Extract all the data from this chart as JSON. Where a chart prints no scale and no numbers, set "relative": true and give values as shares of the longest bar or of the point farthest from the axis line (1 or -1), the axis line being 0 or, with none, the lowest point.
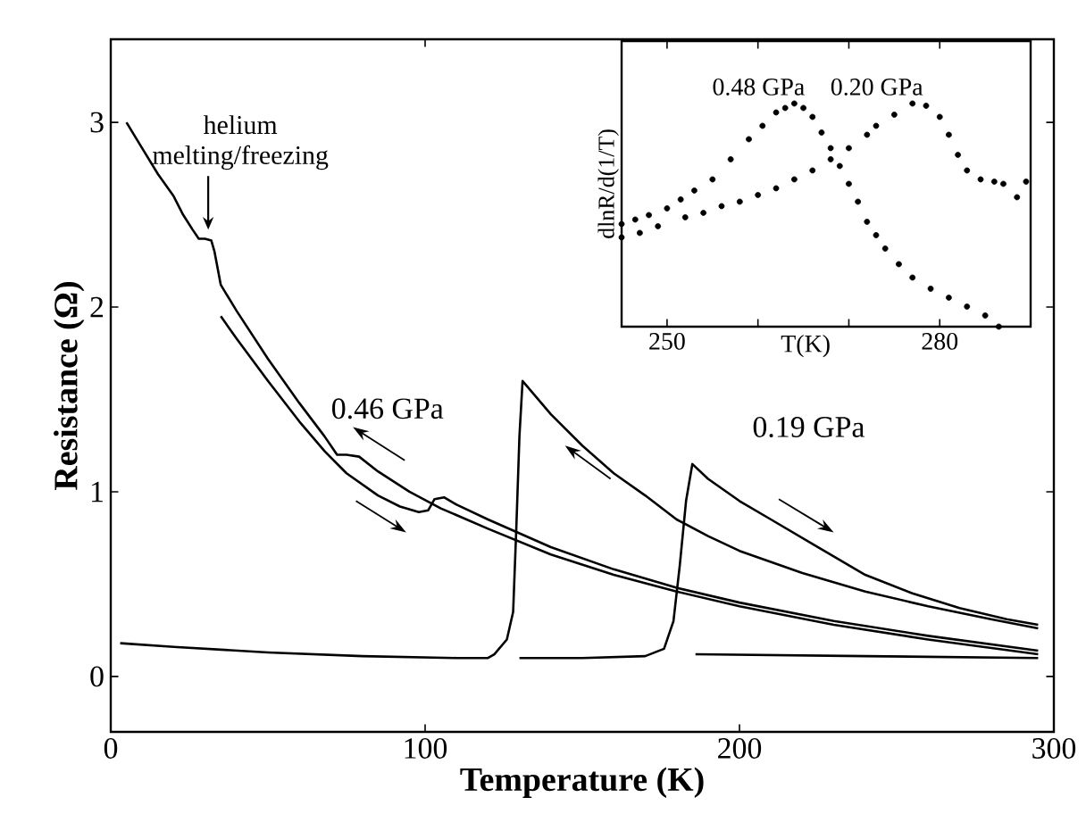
{
  "chart_data": [
    {
      "type": "line",
      "xlabel": "Temperature (K)",
      "ylabel": "Resistance (Ω)",
      "xlim": [
        0,
        300
      ],
      "ylim": [
        -0.3,
        3.45
      ],
      "xticks": [
        0,
        100,
        200,
        300
      ],
      "yticks": [
        0,
        1,
        2,
        3
      ],
      "series": [
        {
          "color": "#000000",
          "x": [
            5,
            10,
            15,
            20,
            23,
            26,
            28,
            30,
            32,
            33,
            35,
            40,
            50,
            60,
            68,
            72,
            75,
            79,
            85,
            95,
            105,
            120,
            140,
            160,
            180,
            200,
            230,
            260,
            295
          ],
          "values": [
            3.0,
            2.86,
            2.72,
            2.6,
            2.5,
            2.42,
            2.37,
            2.37,
            2.36,
            2.3,
            2.12,
            1.98,
            1.72,
            1.48,
            1.3,
            1.2,
            1.2,
            1.19,
            1.11,
            1.0,
            0.91,
            0.8,
            0.66,
            0.55,
            0.46,
            0.38,
            0.28,
            0.2,
            0.12
          ]
        },
        {
          "color": "#000000",
          "x": [
            35,
            40,
            50,
            60,
            68,
            75,
            85,
            92,
            98,
            101,
            103,
            106,
            110,
            120,
            140,
            160,
            180,
            200,
            230,
            260,
            295
          ],
          "values": [
            1.95,
            1.83,
            1.6,
            1.38,
            1.22,
            1.1,
            0.98,
            0.92,
            0.89,
            0.9,
            0.96,
            0.97,
            0.93,
            0.85,
            0.7,
            0.58,
            0.48,
            0.4,
            0.3,
            0.22,
            0.14
          ]
        },
        {
          "color": "#000000",
          "x": [
            3,
            20,
            50,
            80,
            110,
            120,
            122,
            126,
            128,
            129,
            130,
            131,
            140,
            150,
            160,
            170,
            180,
            190,
            200,
            220,
            240,
            260,
            280,
            295
          ],
          "values": [
            0.18,
            0.16,
            0.13,
            0.11,
            0.1,
            0.1,
            0.12,
            0.2,
            0.35,
            0.8,
            1.3,
            1.6,
            1.42,
            1.25,
            1.1,
            0.98,
            0.85,
            0.76,
            0.68,
            0.56,
            0.46,
            0.38,
            0.31,
            0.26
          ]
        },
        {
          "color": "#000000",
          "x": [
            130,
            150,
            170,
            176,
            179,
            181,
            183,
            185,
            190,
            200,
            210,
            225,
            240,
            255,
            270,
            285,
            295
          ],
          "values": [
            0.1,
            0.1,
            0.11,
            0.15,
            0.3,
            0.6,
            0.95,
            1.15,
            1.07,
            0.95,
            0.85,
            0.7,
            0.55,
            0.45,
            0.37,
            0.31,
            0.28
          ]
        },
        {
          "color": "#000000",
          "x": [
            186,
            240,
            295
          ],
          "values": [
            0.12,
            0.11,
            0.1
          ]
        }
      ],
      "annotations": [
        {
          "text": "helium melting/freezing",
          "x": 31,
          "y": 2.4
        },
        "0.46 GPa",
        "0.19 GPa"
      ]
    },
    {
      "type": "scatter",
      "xlabel": "T(K)",
      "ylabel": "dlnR/d(1/T)",
      "relative": true,
      "marker": "circle",
      "xlim": [
        245,
        290
      ],
      "xticks": [
        250,
        {
          "value": 260,
          "label": null
        },
        {
          "value": 270,
          "label": null
        },
        280
      ],
      "series": [
        {
          "name": "0.48 GPa",
          "color": "#000000",
          "x": [
            245,
            246.5,
            248,
            250,
            251.5,
            253,
            255,
            257,
            259,
            260.5,
            262,
            263,
            264,
            265,
            266,
            267,
            268,
            269,
            270,
            271,
            272,
            273,
            274,
            275.5,
            277,
            279,
            281,
            283,
            285,
            286.5
          ],
          "values": [
            0.46,
            0.48,
            0.5,
            0.53,
            0.57,
            0.61,
            0.66,
            0.75,
            0.84,
            0.9,
            0.96,
            0.98,
            1.0,
            0.98,
            0.94,
            0.87,
            0.8,
            0.72,
            0.64,
            0.56,
            0.47,
            0.41,
            0.35,
            0.28,
            0.22,
            0.17,
            0.13,
            0.09,
            0.05,
            0.0
          ]
        },
        {
          "name": "0.20 GPa",
          "color": "#000000",
          "x": [
            245,
            247,
            249,
            252,
            254,
            256,
            258,
            260,
            262,
            264,
            266,
            268,
            270,
            272,
            273,
            275,
            277,
            278.5,
            280,
            281,
            282,
            283,
            284.5,
            286,
            287,
            288.5,
            289.5
          ],
          "values": [
            0.4,
            0.42,
            0.45,
            0.49,
            0.51,
            0.54,
            0.56,
            0.59,
            0.62,
            0.66,
            0.7,
            0.75,
            0.8,
            0.86,
            0.9,
            0.95,
            1.0,
            0.99,
            0.94,
            0.86,
            0.77,
            0.7,
            0.66,
            0.65,
            0.64,
            0.58,
            0.65
          ]
        }
      ]
    }
  ]
}
